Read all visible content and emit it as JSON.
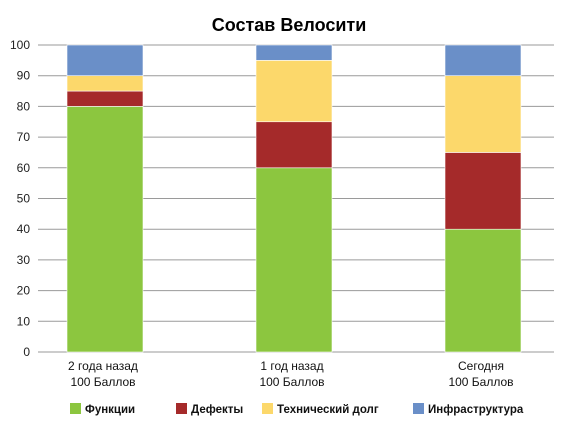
{
  "chart_data": {
    "type": "bar",
    "stacked": true,
    "title": "Состав Велосити",
    "categories": [
      [
        "2 года назад",
        "100 Баллов"
      ],
      [
        "1 год назад",
        "100 Баллов"
      ],
      [
        "Сегодня",
        "100 Баллов"
      ]
    ],
    "series": [
      {
        "name": "Функции",
        "color": "#8CC63F",
        "values": [
          80,
          60,
          40
        ]
      },
      {
        "name": "Дефекты",
        "color": "#A52A2A",
        "values": [
          5,
          15,
          25
        ]
      },
      {
        "name": "Технический долг",
        "color": "#FCD86B",
        "values": [
          5,
          20,
          25
        ]
      },
      {
        "name": "Инфраструктура",
        "color": "#6A8FC8",
        "values": [
          10,
          5,
          10
        ]
      }
    ],
    "ylim": [
      0,
      100
    ],
    "yticks": [
      0,
      10,
      20,
      30,
      40,
      50,
      60,
      70,
      80,
      90,
      100
    ],
    "grid": true,
    "legend_position": "bottom"
  }
}
